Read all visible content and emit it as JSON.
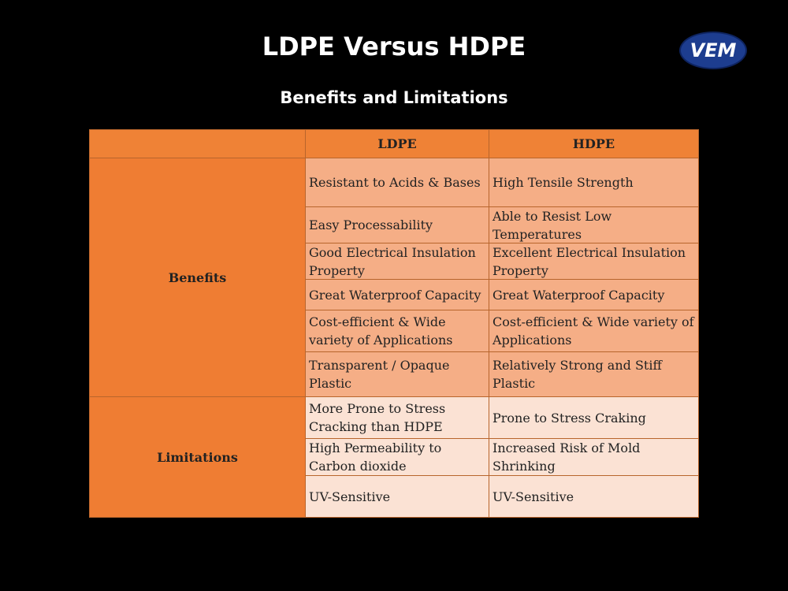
{
  "header": {
    "title": "LDPE Versus HDPE",
    "subtitle": "Benefits and Limitations",
    "logo": "VEM"
  },
  "table": {
    "columns": [
      "LDPE",
      "HDPE"
    ],
    "groups": [
      {
        "label": "Benefits",
        "rows": [
          [
            "Resistant to Acids & Bases",
            "High Tensile Strength"
          ],
          [
            "Easy Processability",
            "Able to Resist Low Temperatures"
          ],
          [
            "Good Electrical Insulation Property",
            "Excellent Electrical Insulation Property"
          ],
          [
            "Great Waterproof Capacity",
            "Great Waterproof Capacity"
          ],
          [
            "Cost-efficient & Wide variety of Applications",
            "Cost-efficient & Wide variety of Applications"
          ],
          [
            "Transparent / Opaque Plastic",
            "Relatively Strong and Stiff Plastic"
          ]
        ]
      },
      {
        "label": "Limitations",
        "rows": [
          [
            "More Prone to Stress Cracking than HDPE",
            "Prone to Stress Craking"
          ],
          [
            "High Permeability to Carbon dioxide",
            "Increased Risk of Mold Shrinking"
          ],
          [
            "UV-Sensitive",
            "UV-Sensitive"
          ]
        ]
      }
    ]
  }
}
